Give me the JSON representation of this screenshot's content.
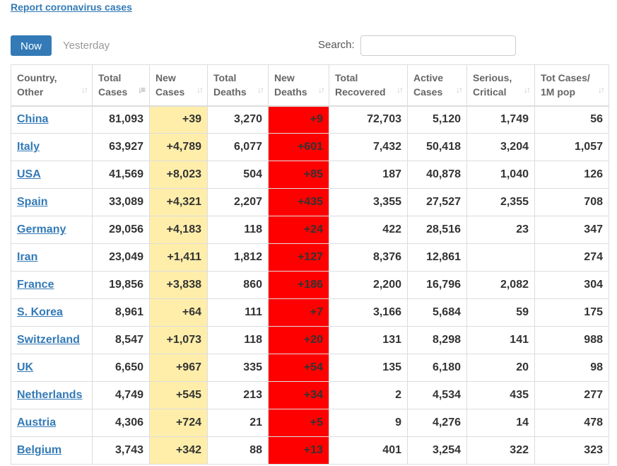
{
  "header": {
    "report_link": "Report coronavirus cases"
  },
  "controls": {
    "now_label": "Now",
    "yesterday_label": "Yesterday",
    "search_label": "Search:",
    "search_value": ""
  },
  "colors": {
    "accent": "#337ab7",
    "new_cases_bg": "#ffeeaa",
    "new_deaths_bg": "#ff0000"
  },
  "table": {
    "columns": [
      {
        "line1": "Country,",
        "line2": "Other",
        "sort_icon": "sort-icon"
      },
      {
        "line1": "Total",
        "line2": "Cases",
        "sort_icon": "sort-desc-icon"
      },
      {
        "line1": "New",
        "line2": "Cases",
        "sort_icon": "sort-icon"
      },
      {
        "line1": "Total",
        "line2": "Deaths",
        "sort_icon": "sort-icon"
      },
      {
        "line1": "New",
        "line2": "Deaths",
        "sort_icon": "sort-icon"
      },
      {
        "line1": "Total",
        "line2": "Recovered",
        "sort_icon": "sort-icon"
      },
      {
        "line1": "Active",
        "line2": "Cases",
        "sort_icon": "sort-icon"
      },
      {
        "line1": "Serious,",
        "line2": "Critical",
        "sort_icon": "sort-icon"
      },
      {
        "line1": "Tot Cases/",
        "line2": "1M pop",
        "sort_icon": "sort-icon"
      }
    ],
    "rows": [
      {
        "country": "China",
        "total_cases": "81,093",
        "new_cases": "+39",
        "total_deaths": "3,270",
        "new_deaths": "+9",
        "total_recovered": "72,703",
        "active_cases": "5,120",
        "serious_critical": "1,749",
        "cases_per_1m": "56"
      },
      {
        "country": "Italy",
        "total_cases": "63,927",
        "new_cases": "+4,789",
        "total_deaths": "6,077",
        "new_deaths": "+601",
        "total_recovered": "7,432",
        "active_cases": "50,418",
        "serious_critical": "3,204",
        "cases_per_1m": "1,057"
      },
      {
        "country": "USA",
        "total_cases": "41,569",
        "new_cases": "+8,023",
        "total_deaths": "504",
        "new_deaths": "+85",
        "total_recovered": "187",
        "active_cases": "40,878",
        "serious_critical": "1,040",
        "cases_per_1m": "126"
      },
      {
        "country": "Spain",
        "total_cases": "33,089",
        "new_cases": "+4,321",
        "total_deaths": "2,207",
        "new_deaths": "+435",
        "total_recovered": "3,355",
        "active_cases": "27,527",
        "serious_critical": "2,355",
        "cases_per_1m": "708"
      },
      {
        "country": "Germany",
        "total_cases": "29,056",
        "new_cases": "+4,183",
        "total_deaths": "118",
        "new_deaths": "+24",
        "total_recovered": "422",
        "active_cases": "28,516",
        "serious_critical": "23",
        "cases_per_1m": "347"
      },
      {
        "country": "Iran",
        "total_cases": "23,049",
        "new_cases": "+1,411",
        "total_deaths": "1,812",
        "new_deaths": "+127",
        "total_recovered": "8,376",
        "active_cases": "12,861",
        "serious_critical": "",
        "cases_per_1m": "274"
      },
      {
        "country": "France",
        "total_cases": "19,856",
        "new_cases": "+3,838",
        "total_deaths": "860",
        "new_deaths": "+186",
        "total_recovered": "2,200",
        "active_cases": "16,796",
        "serious_critical": "2,082",
        "cases_per_1m": "304"
      },
      {
        "country": "S. Korea",
        "total_cases": "8,961",
        "new_cases": "+64",
        "total_deaths": "111",
        "new_deaths": "+7",
        "total_recovered": "3,166",
        "active_cases": "5,684",
        "serious_critical": "59",
        "cases_per_1m": "175"
      },
      {
        "country": "Switzerland",
        "total_cases": "8,547",
        "new_cases": "+1,073",
        "total_deaths": "118",
        "new_deaths": "+20",
        "total_recovered": "131",
        "active_cases": "8,298",
        "serious_critical": "141",
        "cases_per_1m": "988"
      },
      {
        "country": "UK",
        "total_cases": "6,650",
        "new_cases": "+967",
        "total_deaths": "335",
        "new_deaths": "+54",
        "total_recovered": "135",
        "active_cases": "6,180",
        "serious_critical": "20",
        "cases_per_1m": "98"
      },
      {
        "country": "Netherlands",
        "total_cases": "4,749",
        "new_cases": "+545",
        "total_deaths": "213",
        "new_deaths": "+34",
        "total_recovered": "2",
        "active_cases": "4,534",
        "serious_critical": "435",
        "cases_per_1m": "277"
      },
      {
        "country": "Austria",
        "total_cases": "4,306",
        "new_cases": "+724",
        "total_deaths": "21",
        "new_deaths": "+5",
        "total_recovered": "9",
        "active_cases": "4,276",
        "serious_critical": "14",
        "cases_per_1m": "478"
      },
      {
        "country": "Belgium",
        "total_cases": "3,743",
        "new_cases": "+342",
        "total_deaths": "88",
        "new_deaths": "+13",
        "total_recovered": "401",
        "active_cases": "3,254",
        "serious_critical": "322",
        "cases_per_1m": "323"
      }
    ]
  }
}
